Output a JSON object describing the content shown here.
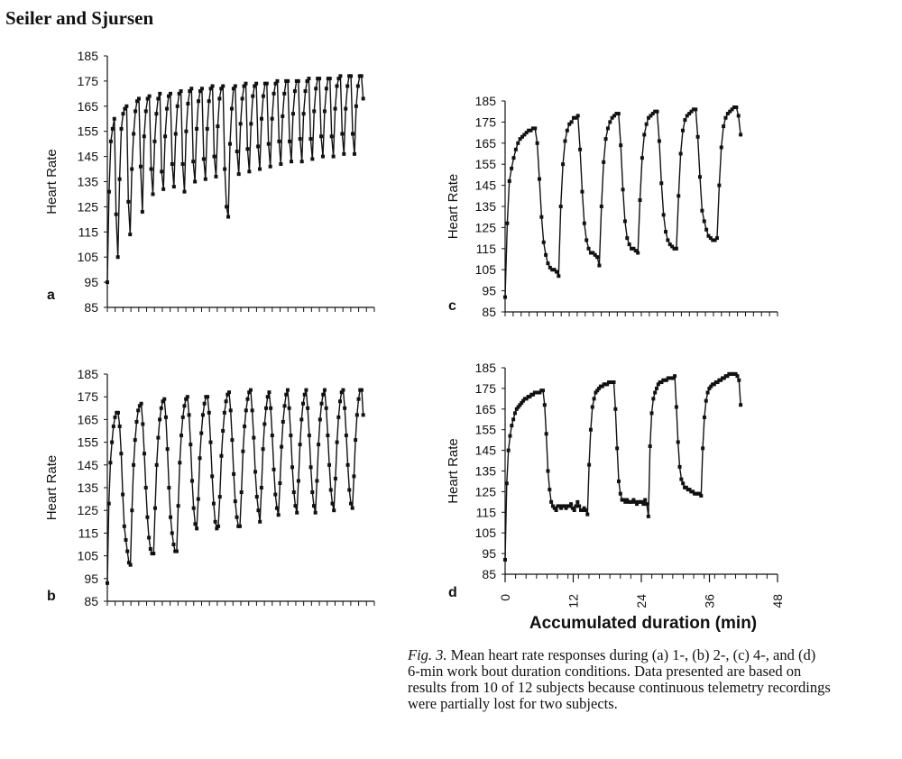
{
  "header": {
    "authors": "Seiler and Sjursen"
  },
  "caption": {
    "fig_label": "Fig. 3.",
    "text": " Mean heart rate responses during (a) 1-, (b) 2-, (c) 4-, and (d) 6-min work bout duration conditions. Data presented are based on results from 10 of 12 subjects because continuous telemetry recordings were partially lost for two subjects."
  },
  "shared": {
    "xlabel": "Accumulated duration (min)"
  },
  "colors": {
    "line": "#111111",
    "marker": "#111111",
    "axis": "#111111"
  },
  "chart_data": [
    {
      "panel": "a",
      "type": "line",
      "ylabel": "Heart Rate",
      "yticks": [
        85,
        95,
        105,
        115,
        125,
        135,
        145,
        155,
        165,
        175,
        185
      ],
      "ylim": [
        85,
        185
      ],
      "xlim": [
        0,
        48
      ],
      "x_ticks_labeled": false,
      "series": [
        {
          "bouts": [
            [
              95,
              131,
              151,
              156,
              160
            ],
            [
              122,
              105,
              136,
              156,
              162,
              164,
              165
            ],
            [
              127,
              114,
              140,
              154,
              163,
              167,
              168
            ],
            [
              141,
              123,
              153,
              163,
              168,
              169
            ],
            [
              140,
              130,
              151,
              162,
              168,
              170
            ],
            [
              139,
              132,
              153,
              164,
              169,
              170
            ],
            [
              142,
              133,
              154,
              165,
              170,
              171
            ],
            [
              142,
              131,
              155,
              166,
              171,
              172
            ],
            [
              143,
              135,
              156,
              167,
              171,
              172
            ],
            [
              144,
              136,
              156,
              167,
              172,
              173
            ],
            [
              145,
              137,
              157,
              168,
              172,
              173
            ],
            [
              140,
              125,
              121,
              150,
              164,
              172,
              173
            ],
            [
              147,
              138,
              158,
              168,
              173,
              174
            ],
            [
              148,
              139,
              158,
              169,
              173,
              174
            ],
            [
              149,
              140,
              160,
              169,
              174,
              174
            ],
            [
              150,
              141,
              160,
              170,
              174,
              175
            ],
            [
              151,
              142,
              161,
              170,
              175,
              175
            ],
            [
              151,
              143,
              162,
              171,
              175,
              175
            ],
            [
              152,
              143,
              162,
              171,
              175,
              176
            ],
            [
              152,
              144,
              163,
              172,
              176,
              176
            ],
            [
              153,
              145,
              163,
              172,
              176,
              176
            ],
            [
              153,
              145,
              164,
              173,
              176,
              177
            ],
            [
              154,
              146,
              164,
              173,
              177,
              177
            ],
            [
              154,
              146,
              165,
              173,
              177,
              177,
              168
            ]
          ]
        }
      ]
    },
    {
      "panel": "b",
      "type": "line",
      "ylabel": "Heart Rate",
      "yticks": [
        85,
        95,
        105,
        115,
        125,
        135,
        145,
        155,
        165,
        175,
        185
      ],
      "ylim": [
        85,
        185
      ],
      "xlim": [
        0,
        48
      ],
      "x_ticks_labeled": false,
      "series": [
        {
          "bouts": [
            [
              93,
              128,
              146,
              155,
              162,
              166,
              168,
              168
            ],
            [
              162,
              150,
              132,
              118,
              112,
              107,
              102,
              101,
              125,
              145,
              156,
              164,
              169,
              171,
              172
            ],
            [
              163,
              150,
              135,
              122,
              113,
              108,
              106,
              106,
              126,
              145,
              157,
              165,
              170,
              173,
              174
            ],
            [
              166,
              152,
              135,
              122,
              115,
              110,
              107,
              107,
              127,
              146,
              158,
              166,
              171,
              174,
              175
            ],
            [
              167,
              154,
              138,
              126,
              119,
              117,
              130,
              148,
              159,
              167,
              172,
              175,
              175
            ],
            [
              168,
              155,
              140,
              128,
              120,
              117,
              118,
              131,
              149,
              160,
              168,
              173,
              176,
              177
            ],
            [
              169,
              156,
              141,
              129,
              122,
              118,
              118,
              133,
              151,
              162,
              169,
              174,
              177,
              178
            ],
            [
              169,
              157,
              142,
              131,
              125,
              120,
              135,
              152,
              163,
              170,
              175,
              177
            ],
            [
              170,
              158,
              143,
              132,
              126,
              123,
              137,
              153,
              164,
              171,
              176,
              178
            ],
            [
              170,
              158,
              144,
              133,
              127,
              124,
              138,
              154,
              165,
              172,
              176,
              178
            ],
            [
              170,
              158,
              144,
              133,
              127,
              124,
              138,
              154,
              165,
              172,
              176,
              178
            ],
            [
              170,
              158,
              145,
              134,
              128,
              125,
              139,
              155,
              166,
              173,
              177,
              178
            ],
            [
              170,
              158,
              145,
              134,
              128,
              126,
              140,
              156,
              167,
              174,
              178,
              178,
              167
            ]
          ]
        }
      ]
    },
    {
      "panel": "c",
      "type": "line",
      "ylabel": "Heart Rate",
      "yticks": [
        85,
        95,
        105,
        115,
        125,
        135,
        145,
        155,
        165,
        175,
        185
      ],
      "ylim": [
        85,
        185
      ],
      "xlim": [
        0,
        48
      ],
      "x_ticks_labeled": false,
      "series": [
        {
          "bouts": [
            [
              92,
              127,
              147,
              153,
              158,
              162,
              165,
              167,
              168,
              169,
              170,
              171,
              171,
              172,
              172
            ],
            [
              165,
              148,
              130,
              118,
              112,
              108,
              106,
              105,
              105,
              104,
              102
            ],
            [
              135,
              155,
              166,
              171,
              174,
              175,
              177,
              177,
              178
            ],
            [
              162,
              142,
              127,
              119,
              115,
              113,
              113,
              112,
              111,
              107
            ],
            [
              135,
              156,
              167,
              172,
              175,
              177,
              178,
              179,
              179
            ],
            [
              164,
              143,
              128,
              120,
              117,
              115,
              115,
              114,
              113
            ],
            [
              138,
              158,
              169,
              174,
              177,
              178,
              179,
              180,
              180
            ],
            [
              166,
              146,
              131,
              123,
              119,
              117,
              116,
              115,
              115
            ],
            [
              140,
              160,
              171,
              176,
              178,
              179,
              180,
              181,
              181
            ],
            [
              168,
              149,
              133,
              128,
              124,
              121,
              120,
              119,
              119,
              120
            ],
            [
              145,
              163,
              173,
              177,
              179,
              180,
              181,
              182,
              182,
              178,
              169
            ]
          ]
        }
      ]
    },
    {
      "panel": "d",
      "type": "line",
      "ylabel": "Heart Rate",
      "xlabel": "Accumulated duration (min)",
      "yticks": [
        85,
        95,
        105,
        115,
        125,
        135,
        145,
        155,
        165,
        175,
        185
      ],
      "ylim": [
        85,
        185
      ],
      "xlim": [
        0,
        48
      ],
      "xticks": [
        0,
        12,
        24,
        36,
        48
      ],
      "series": [
        {
          "bouts": [
            [
              92,
              129,
              145,
              152,
              157,
              160,
              163,
              165,
              166,
              167,
              168,
              169,
              170,
              170,
              171,
              171,
              172,
              172,
              173,
              173,
              173,
              173,
              174,
              174
            ],
            [
              167,
              153,
              135,
              126,
              120,
              118,
              117,
              116,
              118,
              118,
              117,
              118,
              118,
              117,
              118,
              118,
              119,
              117,
              116,
              118,
              120,
              118,
              116,
              116,
              117,
              116,
              114
            ],
            [
              138,
              155,
              166,
              170,
              173,
              174,
              175,
              176,
              176,
              177,
              177,
              177,
              178,
              178,
              178,
              178
            ],
            [
              165,
              146,
              130,
              124,
              121,
              121,
              120,
              121,
              120,
              120,
              120,
              121,
              120,
              119,
              120,
              120,
              120,
              119,
              121,
              119,
              113
            ],
            [
              147,
              163,
              170,
              173,
              175,
              177,
              178,
              178,
              179,
              179,
              179,
              180,
              180,
              180,
              180,
              181
            ],
            [
              166,
              149,
              137,
              131,
              129,
              127,
              127,
              126,
              126,
              125,
              125,
              124,
              124,
              124,
              124,
              123
            ],
            [
              146,
              161,
              169,
              173,
              175,
              176,
              177,
              177,
              178,
              178,
              179,
              179,
              180,
              180,
              181,
              181,
              182,
              182,
              182,
              182,
              182,
              181,
              179,
              167
            ]
          ]
        }
      ]
    }
  ]
}
